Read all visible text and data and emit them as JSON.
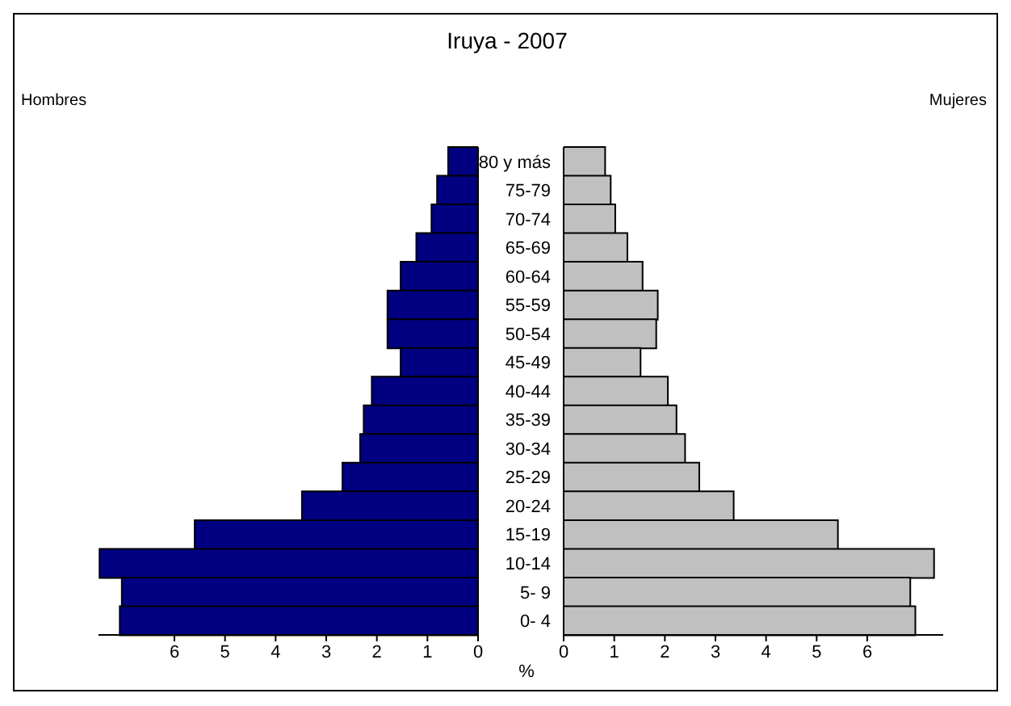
{
  "chart_data": [
    {
      "type": "bar",
      "orientation": "horizontal",
      "title": "Iruya - 2007",
      "series": [
        {
          "name": "Hombres",
          "color": "#000080",
          "values": [
            0.59,
            0.81,
            0.92,
            1.22,
            1.53,
            1.79,
            1.79,
            1.53,
            2.1,
            2.26,
            2.33,
            2.68,
            3.48,
            5.6,
            7.48,
            7.04,
            7.08
          ]
        }
      ],
      "xlim": [
        7.5,
        0
      ],
      "xticks": [
        6,
        5,
        4,
        3,
        2,
        1,
        0
      ],
      "tick_labels": "x",
      "grid": false,
      "legend": false
    },
    {
      "type": "bar",
      "orientation": "horizontal",
      "xlabel": "%",
      "categories": [
        "80 y más",
        "75-79",
        "70-74",
        "65-69",
        "60-64",
        "55-59",
        "50-54",
        "45-49",
        "40-44",
        "35-39",
        "30-34",
        "25-29",
        "20-24",
        "15-19",
        "10-14",
        "5- 9",
        "0- 4"
      ],
      "series": [
        {
          "name": "Mujeres",
          "color": "#c0c0c0",
          "values": [
            0.82,
            0.93,
            1.02,
            1.26,
            1.56,
            1.86,
            1.83,
            1.52,
            2.06,
            2.23,
            2.4,
            2.68,
            3.36,
            5.42,
            7.32,
            6.85,
            6.95
          ]
        }
      ],
      "xlim": [
        0,
        7.5
      ],
      "xticks": [
        0,
        1,
        2,
        3,
        4,
        5,
        6
      ],
      "grid": false,
      "legend": false
    }
  ]
}
